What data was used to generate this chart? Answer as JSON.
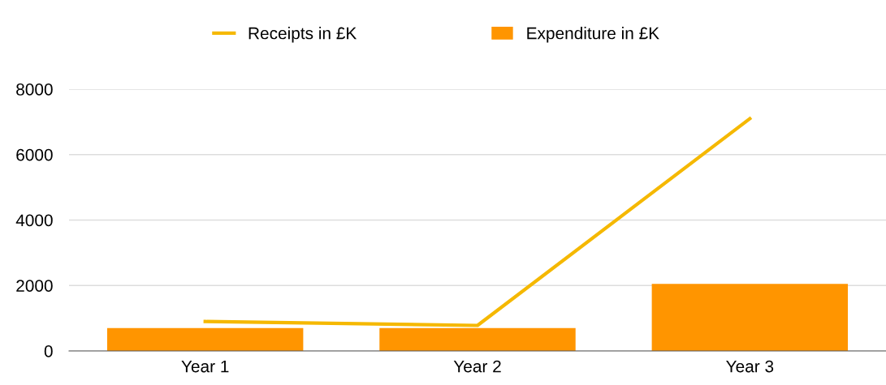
{
  "chart_data": {
    "type": "bar",
    "categories": [
      "Year 1",
      "Year 2",
      "Year 3"
    ],
    "series": [
      {
        "name": "Receipts in £K",
        "type": "line",
        "color": "#f5b800",
        "values": [
          900,
          780,
          7100
        ]
      },
      {
        "name": "Expenditure in £K",
        "color": "#ff9500",
        "values": [
          700,
          700,
          2050
        ]
      }
    ],
    "ylim": [
      0,
      8000
    ],
    "yticks": [
      0,
      2000,
      4000,
      6000,
      8000
    ],
    "grid": "y",
    "legend": "top",
    "marker": "none"
  }
}
